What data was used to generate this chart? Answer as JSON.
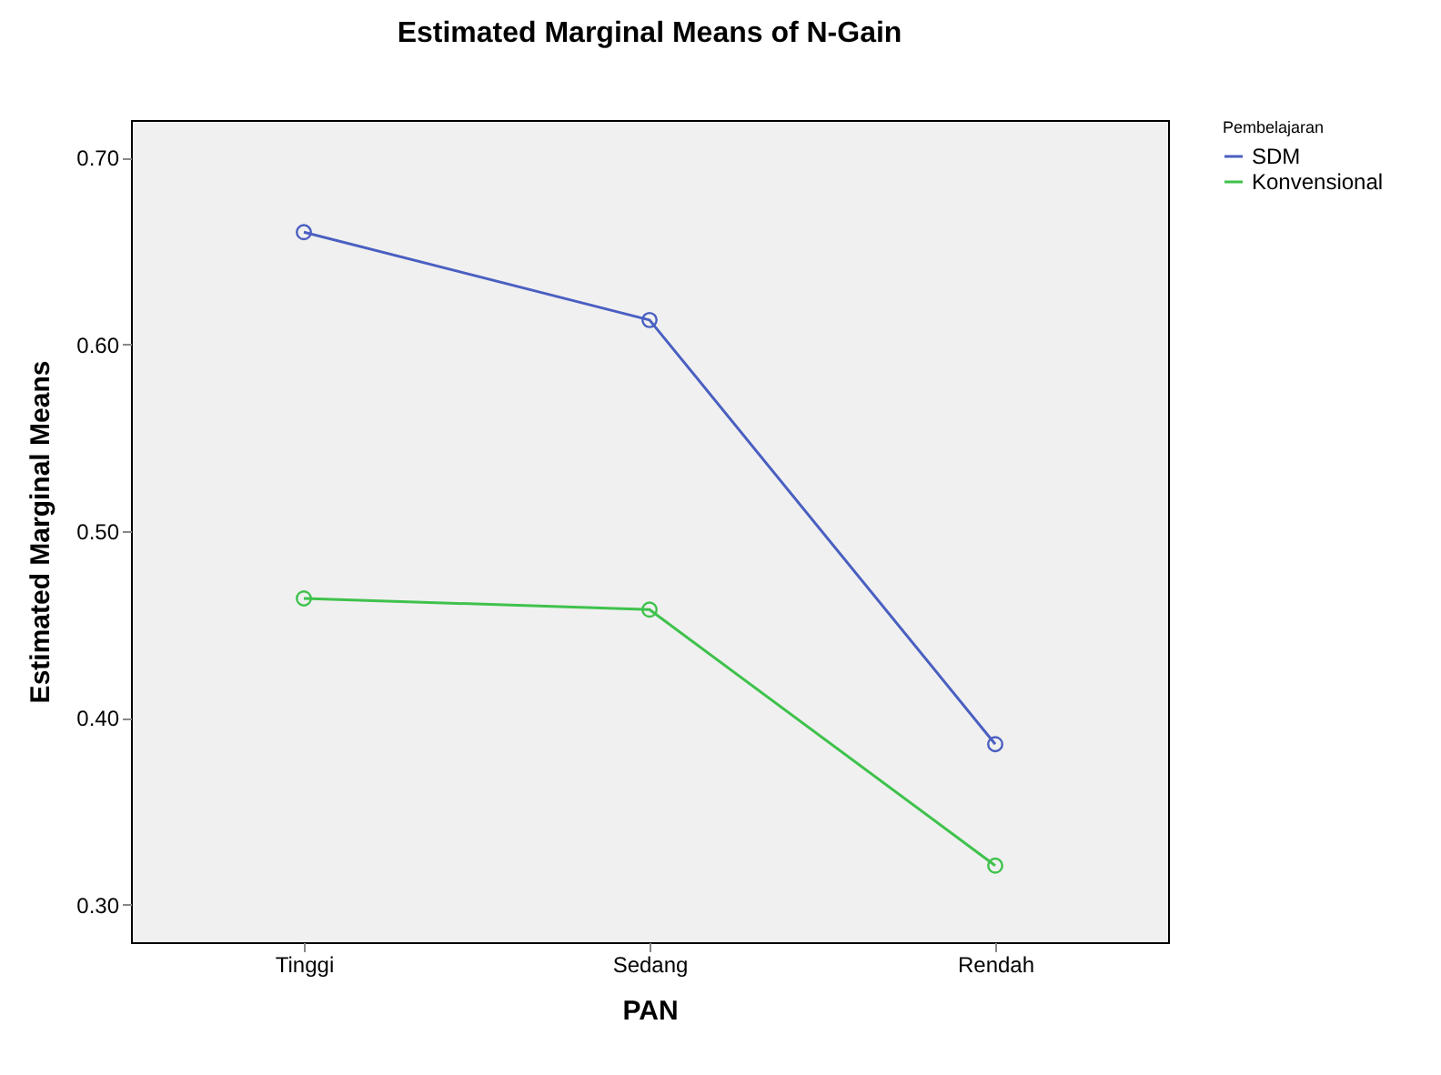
{
  "chart_data": {
    "type": "line",
    "title": "Estimated Marginal Means of N-Gain",
    "xlabel": "PAN",
    "ylabel": "Estimated Marginal Means",
    "legend_title": "Pembelajaran",
    "categories": [
      "Tinggi",
      "Sedang",
      "Rendah"
    ],
    "series": [
      {
        "name": "SDM",
        "color": "#4a5fc1",
        "values": [
          0.66,
          0.613,
          0.386
        ]
      },
      {
        "name": "Konvensional",
        "color": "#3fc24c",
        "values": [
          0.464,
          0.458,
          0.321
        ]
      }
    ],
    "ylim": [
      0.28,
      0.72
    ],
    "yticks": [
      {
        "value": 0.3,
        "label": "0.30"
      },
      {
        "value": 0.4,
        "label": "0.40"
      },
      {
        "value": 0.5,
        "label": "0.50"
      },
      {
        "value": 0.6,
        "label": "0.60"
      },
      {
        "value": 0.7,
        "label": "0.70"
      }
    ],
    "marker": "circle",
    "legend": "top right",
    "grid": false
  }
}
